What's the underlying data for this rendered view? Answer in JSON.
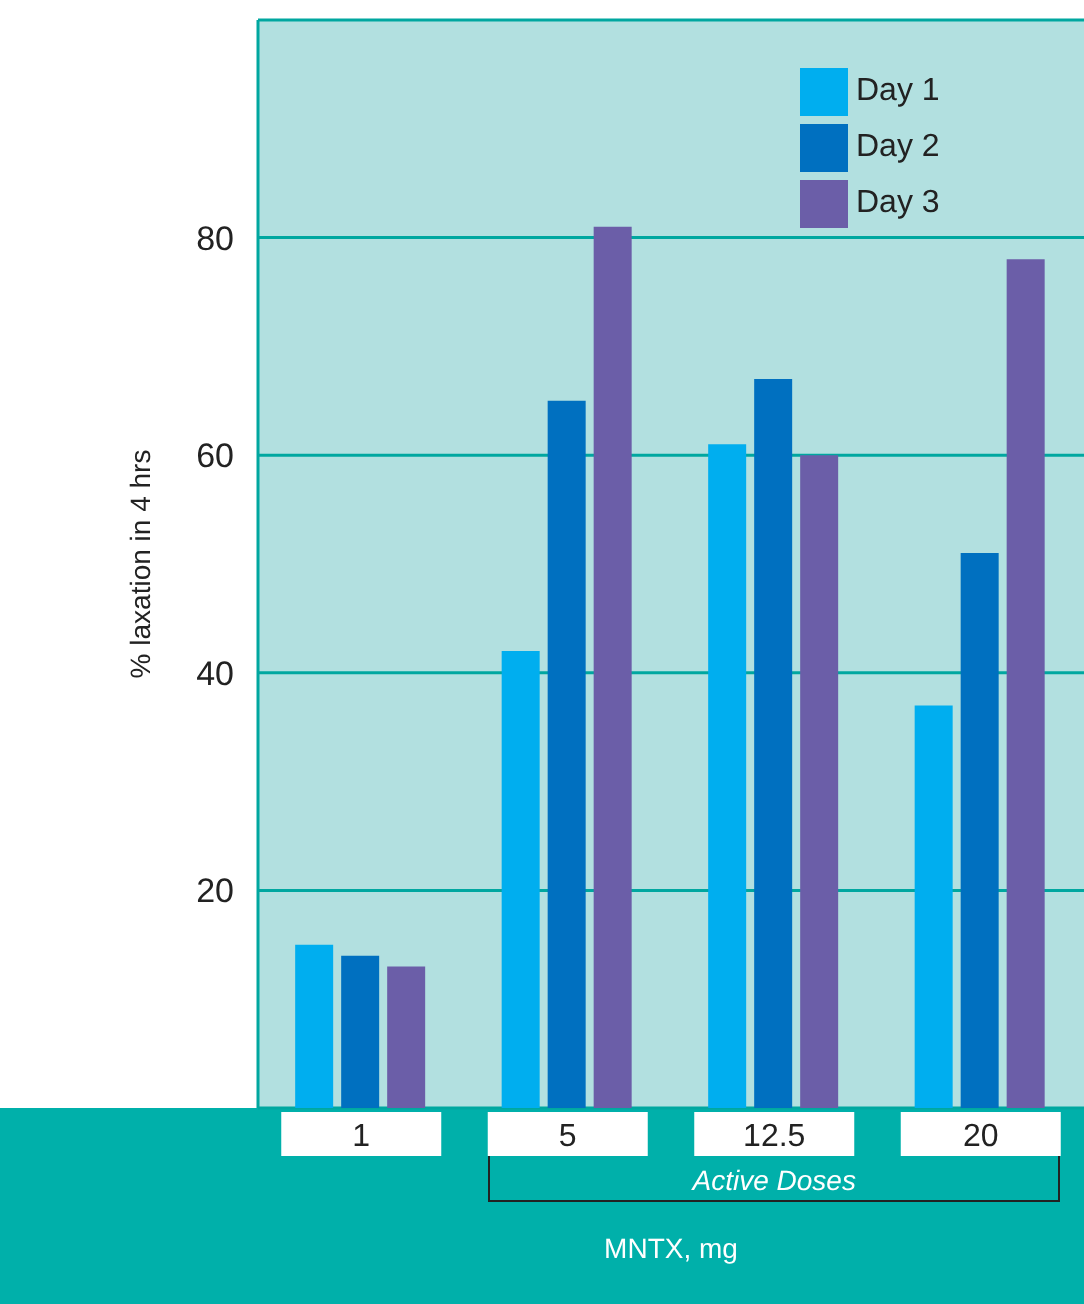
{
  "chart_data": {
    "type": "bar",
    "categories": [
      "1",
      "5",
      "12.5",
      "20"
    ],
    "series": [
      {
        "name": "Day 1",
        "color": "#00aeef",
        "values": [
          15,
          42,
          61,
          37
        ]
      },
      {
        "name": "Day 2",
        "color": "#0070c0",
        "values": [
          14,
          65,
          67,
          51
        ]
      },
      {
        "name": "Day 3",
        "color": "#6b5ea8",
        "values": [
          13,
          81,
          60,
          78
        ]
      }
    ],
    "ylim": [
      0,
      100
    ],
    "yticks": [
      20,
      40,
      60,
      80
    ],
    "ylabel": "% laxation in 4 hrs",
    "xlabel": "MNTX, mg",
    "annotations": [
      "Active Doses"
    ],
    "grid": "y",
    "legend": "top right"
  }
}
